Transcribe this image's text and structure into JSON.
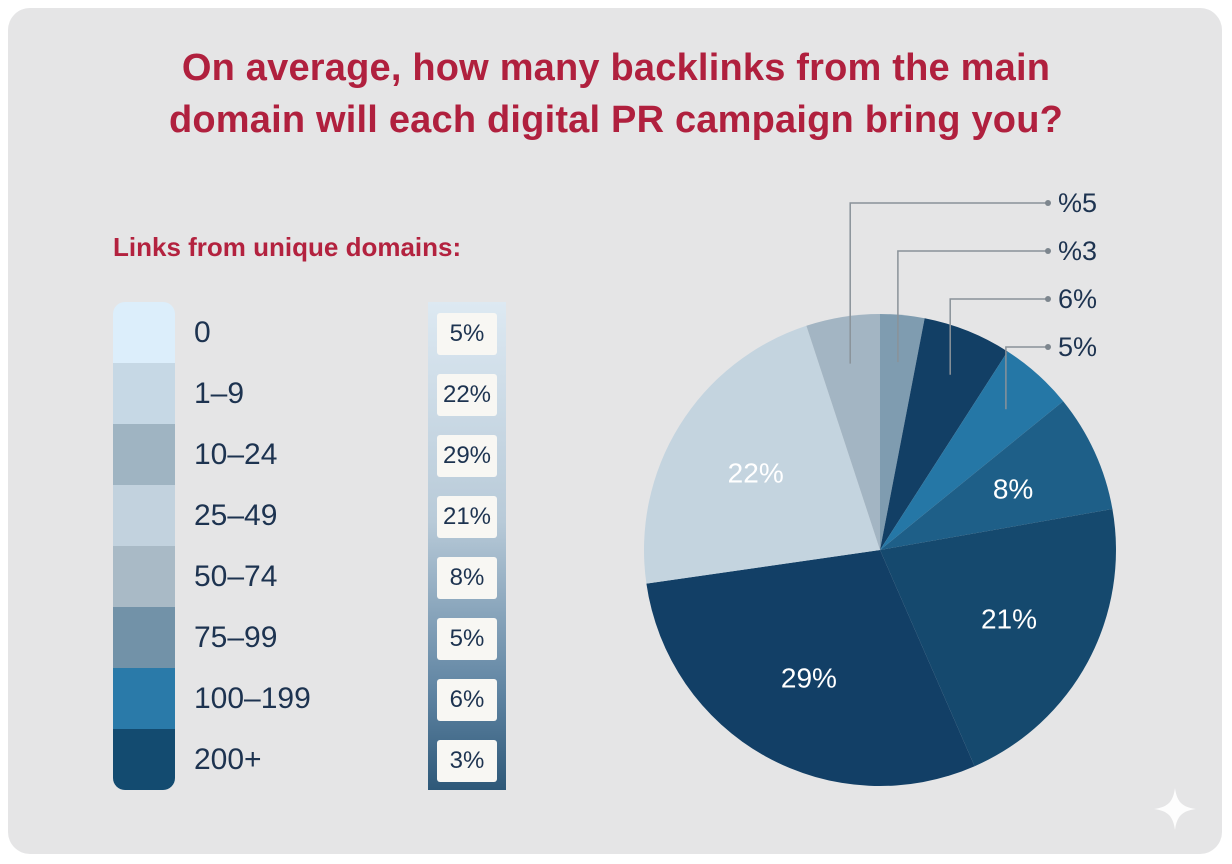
{
  "header": {
    "title_line1": "On average, how many backlinks from the main",
    "title_line2": "domain will each digital PR campaign bring you?",
    "subtitle": "Links from unique domains:"
  },
  "colors": {
    "title": "#b0203e",
    "card_background": "#e5e5e6",
    "legend_swatches": [
      "#dceefb",
      "#c6d8e5",
      "#9fb4c2",
      "#c2d2de",
      "#a9bac6",
      "#7292a8",
      "#2a7aa9",
      "#134b70"
    ]
  },
  "legend": {
    "categories": [
      "0",
      "1–9",
      "10–24",
      "25–49",
      "50–74",
      "75–99",
      "100–199",
      "200+"
    ],
    "percent_labels": [
      "5%",
      "22%",
      "29%",
      "21%",
      "8%",
      "5%",
      "6%",
      "3%"
    ]
  },
  "chart_data": {
    "type": "pie",
    "title": "On average, how many backlinks from the main domain will each digital PR campaign bring you?",
    "slices": [
      {
        "label": "%3",
        "value": 3,
        "color": "#7f9cb0",
        "label_position": "callout"
      },
      {
        "label": "6%",
        "value": 6,
        "color": "#123f65",
        "label_position": "callout"
      },
      {
        "label": "5%",
        "value": 5,
        "color": "#2577a6",
        "label_position": "callout"
      },
      {
        "label": "8%",
        "value": 8,
        "color": "#1e5f88",
        "label_position": "inside"
      },
      {
        "label": "21%",
        "value": 21,
        "color": "#15496e",
        "label_position": "inside"
      },
      {
        "label": "29%",
        "value": 29,
        "color": "#123f66",
        "label_position": "inside"
      },
      {
        "label": "22%",
        "value": 22,
        "color": "#c4d4df",
        "label_position": "inside"
      },
      {
        "label": "%5",
        "value": 5,
        "color": "#a3b5c3",
        "label_position": "callout"
      }
    ],
    "start": "12 o'clock",
    "direction": "clockwise"
  }
}
